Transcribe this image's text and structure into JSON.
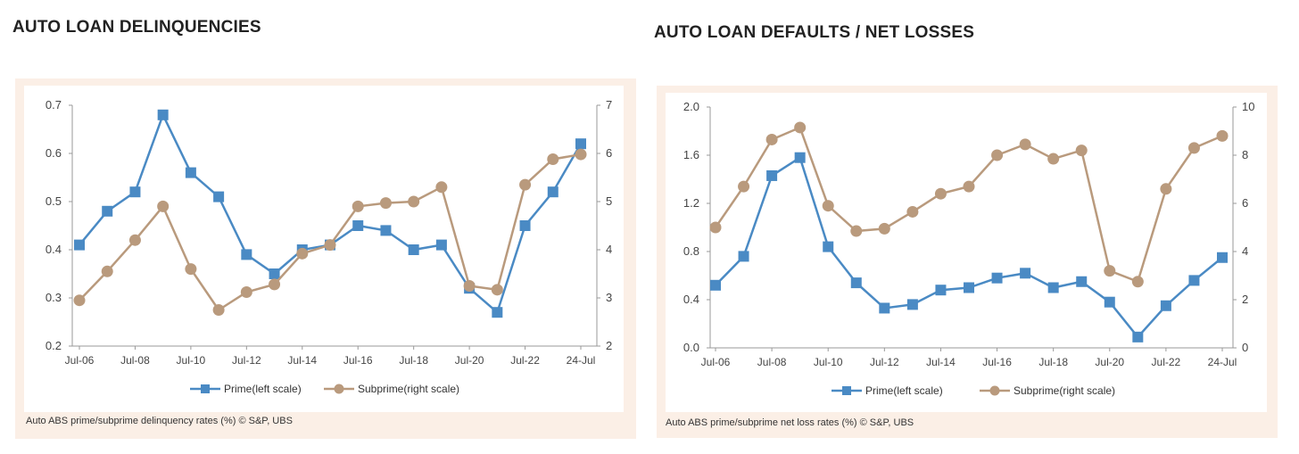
{
  "panels": {
    "left": {
      "title": "AUTO LOAN DELINQUENCIES",
      "caption": "Auto ABS prime/subprime delinquency rates (%) © S&P, UBS"
    },
    "right": {
      "title": "AUTO LOAN DEFAULTS / NET LOSSES",
      "caption": "Auto ABS prime/subprime net loss rates (%) © S&P, UBS"
    }
  },
  "colors": {
    "prime": "#4a8ac4",
    "subprime": "#b99a7d",
    "axis": "#999999",
    "frame": "#fbefe6"
  },
  "chart_data": [
    {
      "type": "line",
      "title": "AUTO LOAN DELINQUENCIES",
      "x": [
        "Jul-06",
        "Jul-07",
        "Jul-08",
        "Jul-09",
        "Jul-10",
        "Jul-11",
        "Jul-12",
        "Jul-13",
        "Jul-14",
        "Jul-15",
        "Jul-16",
        "Jul-17",
        "Jul-18",
        "Jul-19",
        "Jul-20",
        "Jul-21",
        "Jul-22",
        "Jul-23",
        "24-Jul"
      ],
      "x_tick_labels": [
        "Jul-06",
        "Jul-08",
        "Jul-10",
        "Jul-12",
        "Jul-14",
        "Jul-16",
        "Jul-18",
        "Jul-20",
        "Jul-22",
        "24-Jul"
      ],
      "y_left": {
        "ylim": [
          0.2,
          0.7
        ],
        "ticks": [
          "0.2",
          "0.3",
          "0.4",
          "0.5",
          "0.6",
          "0.7"
        ]
      },
      "y_right": {
        "ylim": [
          2,
          7
        ],
        "ticks": [
          "2",
          "3",
          "4",
          "5",
          "6",
          "7"
        ]
      },
      "series": [
        {
          "name": "Prime(left scale)",
          "axis": "left",
          "marker": "square",
          "values": [
            0.41,
            0.48,
            0.52,
            0.68,
            0.56,
            0.51,
            0.39,
            0.35,
            0.4,
            0.41,
            0.45,
            0.44,
            0.4,
            0.41,
            0.32,
            0.27,
            0.45,
            0.52,
            0.62
          ]
        },
        {
          "name": "Subprime(right scale)",
          "axis": "right",
          "marker": "circle",
          "values": [
            2.95,
            3.55,
            4.2,
            4.9,
            3.6,
            2.75,
            3.12,
            3.28,
            3.92,
            4.1,
            4.9,
            4.97,
            5.0,
            5.3,
            3.25,
            3.17,
            5.35,
            5.88,
            5.98
          ]
        }
      ],
      "legend": "bottom",
      "grid": false
    },
    {
      "type": "line",
      "title": "AUTO LOAN DEFAULTS / NET LOSSES",
      "x": [
        "Jul-06",
        "Jul-07",
        "Jul-08",
        "Jul-09",
        "Jul-10",
        "Jul-11",
        "Jul-12",
        "Jul-13",
        "Jul-14",
        "Jul-15",
        "Jul-16",
        "Jul-17",
        "Jul-18",
        "Jul-19",
        "Jul-20",
        "Jul-21",
        "Jul-22",
        "Jul-23",
        "24-Jul"
      ],
      "x_tick_labels": [
        "Jul-06",
        "Jul-08",
        "Jul-10",
        "Jul-12",
        "Jul-14",
        "Jul-16",
        "Jul-18",
        "Jul-20",
        "Jul-22",
        "24-Jul"
      ],
      "y_left": {
        "ylim": [
          0.0,
          2.0
        ],
        "ticks": [
          "0.0",
          "0.4",
          "0.8",
          "1.2",
          "1.6",
          "2.0"
        ]
      },
      "y_right": {
        "ylim": [
          0,
          10
        ],
        "ticks": [
          "0",
          "2",
          "4",
          "6",
          "8",
          "10"
        ]
      },
      "series": [
        {
          "name": "Prime(left scale)",
          "axis": "left",
          "marker": "square",
          "values": [
            0.52,
            0.76,
            1.43,
            1.58,
            0.84,
            0.54,
            0.33,
            0.36,
            0.48,
            0.5,
            0.58,
            0.62,
            0.5,
            0.55,
            0.38,
            0.09,
            0.35,
            0.56,
            0.75
          ]
        },
        {
          "name": "Subprime(right scale)",
          "axis": "right",
          "marker": "circle",
          "values": [
            5.0,
            6.7,
            8.65,
            9.15,
            5.9,
            4.85,
            4.95,
            5.65,
            6.4,
            6.7,
            8.0,
            8.45,
            7.85,
            8.2,
            3.2,
            2.75,
            6.6,
            8.3,
            8.8
          ]
        }
      ],
      "legend": "bottom",
      "grid": false
    }
  ]
}
